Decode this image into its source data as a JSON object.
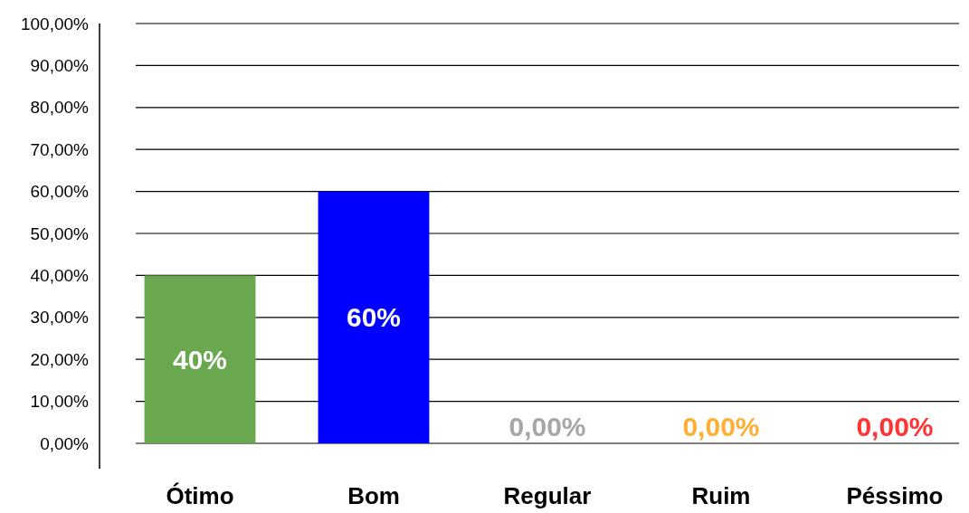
{
  "chart_data": {
    "type": "bar",
    "categories": [
      "Ótimo",
      "Bom",
      "Regular",
      "Ruim",
      "Péssimo"
    ],
    "values": [
      40,
      60,
      0,
      0,
      0
    ],
    "colors": [
      "#6aa84f",
      "#0000ff",
      "#a6a6a6",
      "#ffad33",
      "#ff3333"
    ],
    "value_labels": [
      "40%",
      "60%",
      "0,00%",
      "0,00%",
      "0,00%"
    ],
    "ylim": [
      0,
      100
    ],
    "yticks": [
      {
        "value": 0,
        "label": "0,00%"
      },
      {
        "value": 10,
        "label": "10,00%"
      },
      {
        "value": 20,
        "label": "20,00%"
      },
      {
        "value": 30,
        "label": "30,00%"
      },
      {
        "value": 40,
        "label": "40,00%"
      },
      {
        "value": 50,
        "label": "50,00%"
      },
      {
        "value": 60,
        "label": "60,00%"
      },
      {
        "value": 70,
        "label": "70,00%"
      },
      {
        "value": 80,
        "label": "80,00%"
      },
      {
        "value": 90,
        "label": "90,00%"
      },
      {
        "value": 100,
        "label": "100,00%"
      }
    ],
    "grid": "y"
  }
}
